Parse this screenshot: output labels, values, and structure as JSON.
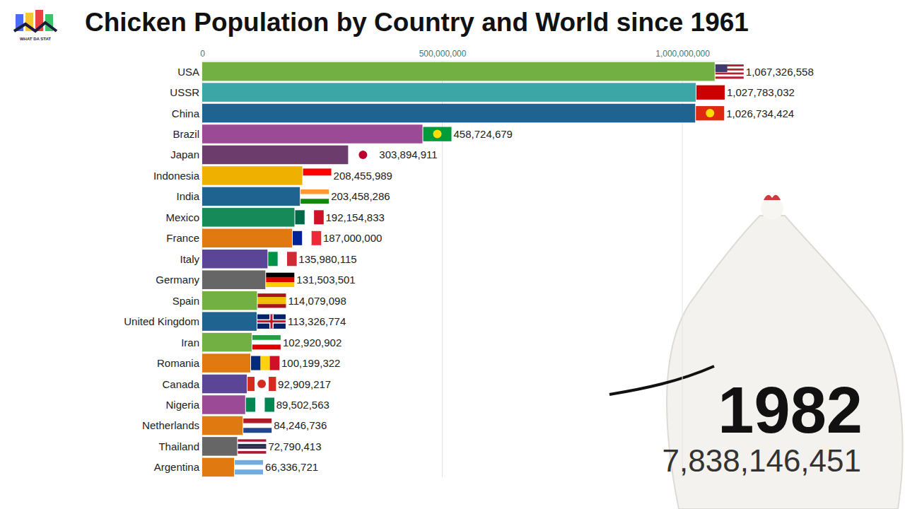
{
  "chart_data": {
    "type": "bar",
    "orientation": "horizontal",
    "title": "Chicken Population by Country and World since 1961",
    "categories": [
      "USA",
      "USSR",
      "China",
      "Brazil",
      "Japan",
      "Indonesia",
      "India",
      "Mexico",
      "France",
      "Italy",
      "Germany",
      "Spain",
      "United Kingdom",
      "Iran",
      "Romania",
      "Canada",
      "Nigeria",
      "Netherlands",
      "Thailand",
      "Argentina"
    ],
    "values": [
      1067326558,
      1027783032,
      1026734424,
      458724679,
      303894911,
      208455989,
      203458286,
      192154833,
      187000000,
      135980115,
      131503501,
      114079098,
      113326774,
      102920902,
      100199322,
      92909217,
      89502563,
      84246736,
      72790413,
      66336721
    ],
    "value_labels": [
      "1,067,326,558",
      "1,027,783,032",
      "1,026,734,424",
      "458,724,679",
      "303,894,911",
      "208,455,989",
      "203,458,286",
      "192,154,833",
      "187,000,000",
      "135,980,115",
      "131,503,501",
      "114,079,098",
      "113,326,774",
      "102,920,902",
      "100,199,322",
      "92,909,217",
      "89,502,563",
      "84,246,736",
      "72,790,413",
      "66,336,721"
    ],
    "colors": [
      "#72b043",
      "#3aa6a6",
      "#1f6391",
      "#9b4a96",
      "#6c3d6c",
      "#f0b000",
      "#1f6391",
      "#178a5a",
      "#e07a10",
      "#5b4596",
      "#666666",
      "#72b043",
      "#1f6391",
      "#72b043",
      "#e07a10",
      "#5b4596",
      "#9b4a96",
      "#e07a10",
      "#666666",
      "#e07a10"
    ],
    "xlim": [
      0,
      1100000000
    ],
    "xticks": [
      0,
      {
        "value": 500000000,
        "label": "500,000,000"
      },
      {
        "value": 1000000000,
        "label": "1,000,000,000"
      }
    ],
    "grid": true,
    "data_labels": true,
    "annotations": [
      "1982",
      "7,838,146,451",
      "WHAT DA STAT"
    ]
  }
}
